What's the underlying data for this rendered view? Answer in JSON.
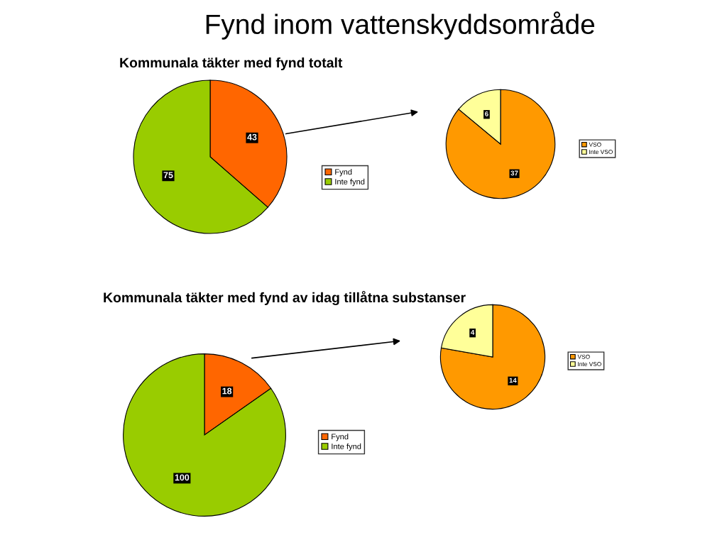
{
  "chart_data": [
    {
      "type": "pie",
      "title": "Kommunala täkter med fynd totalt",
      "annotations": [
        "Fynd inom vattenskyddsområde"
      ],
      "categories": [
        "Fynd",
        "Inte fynd"
      ],
      "values": [
        43,
        75
      ],
      "colors": [
        "#ff6600",
        "#99cc00"
      ],
      "data_labels": true,
      "legend": "right"
    },
    {
      "type": "pie",
      "categories": [
        "VSO",
        "Inte VSO"
      ],
      "values": [
        37,
        6
      ],
      "colors": [
        "#ff9900",
        "#ffff99"
      ],
      "data_labels": true,
      "legend": "right"
    },
    {
      "type": "pie",
      "title": "Kommunala täkter med fynd av idag tillåtna substanser",
      "categories": [
        "Fynd",
        "Inte fynd"
      ],
      "values": [
        18,
        100
      ],
      "colors": [
        "#ff6600",
        "#99cc00"
      ],
      "data_labels": true,
      "legend": "right"
    },
    {
      "type": "pie",
      "categories": [
        "VSO",
        "Inte VSO"
      ],
      "values": [
        14,
        4
      ],
      "colors": [
        "#ff9900",
        "#ffff99"
      ],
      "data_labels": true,
      "legend": "right"
    }
  ]
}
